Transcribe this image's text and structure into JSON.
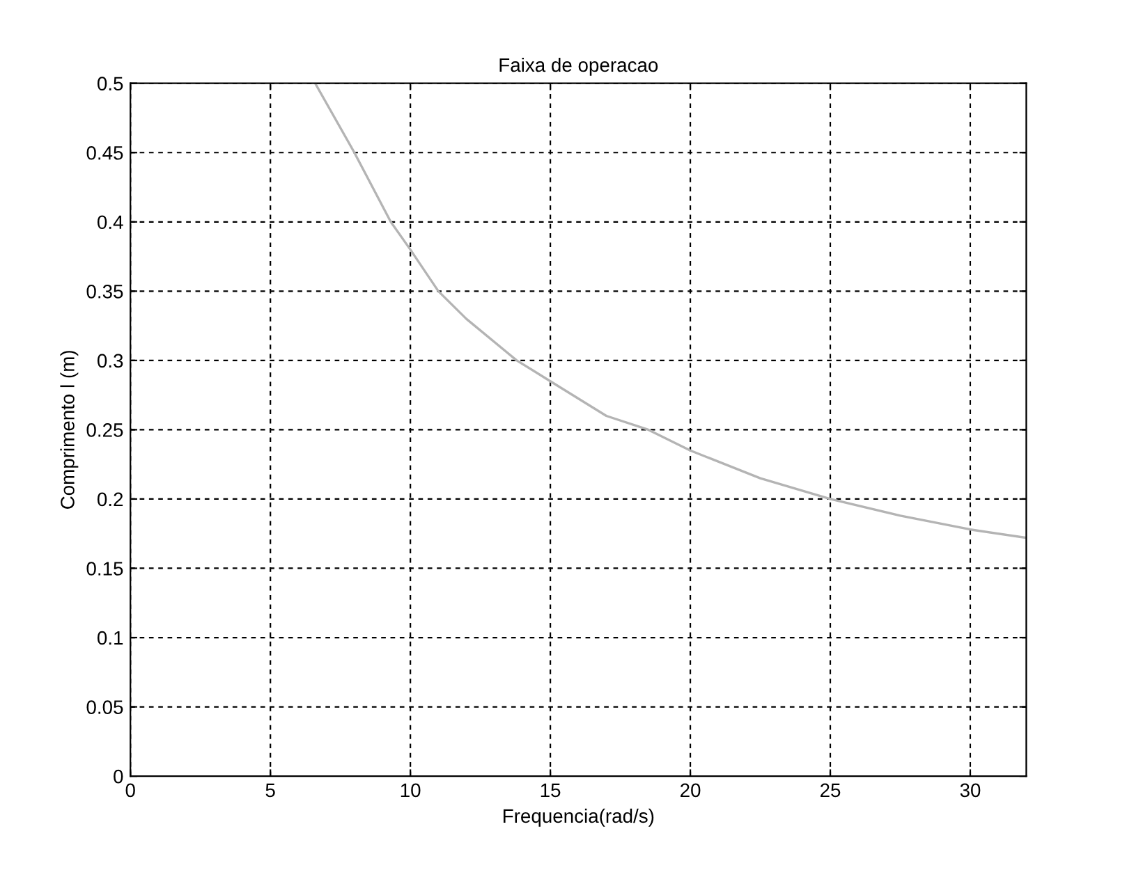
{
  "chart_data": {
    "type": "line",
    "title": "Faixa de operacao",
    "xlabel": "Frequencia(rad/s)",
    "ylabel": "Comprimento l (m)",
    "x": [
      6.6,
      8,
      9.3,
      10,
      11,
      12,
      13.8,
      15,
      17,
      18.5,
      20,
      22.5,
      25,
      27.5,
      30,
      32
    ],
    "series": [
      {
        "color": "#b4b4b4",
        "values": [
          0.5,
          0.45,
          0.4,
          0.38,
          0.35,
          0.33,
          0.3,
          0.285,
          0.26,
          0.25,
          0.235,
          0.215,
          0.2,
          0.188,
          0.178,
          0.172
        ]
      }
    ],
    "xlim": [
      0,
      32
    ],
    "ylim": [
      0,
      0.5
    ],
    "xticks": [
      0,
      5,
      10,
      15,
      20,
      25,
      30
    ],
    "yticks": [
      0,
      0.05,
      0.1,
      0.15,
      0.2,
      0.25,
      0.3,
      0.35,
      0.4,
      0.45,
      0.5
    ],
    "grid": true,
    "line_style": "solid"
  }
}
